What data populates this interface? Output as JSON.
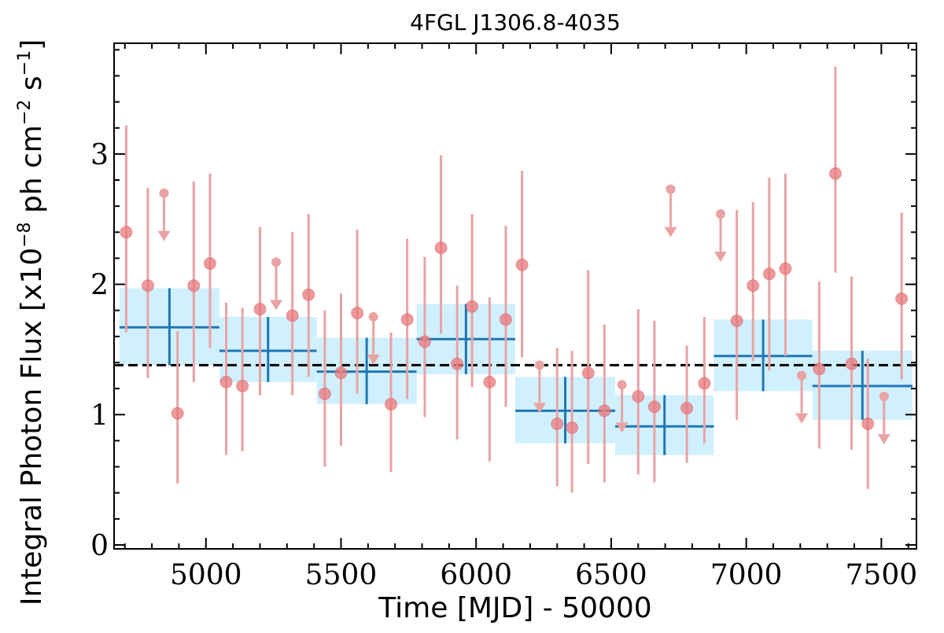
{
  "chart_data": {
    "type": "scatter",
    "title": "4FGL J1306.8-4035",
    "xlabel": "Time [MJD] - 50000",
    "ylabel": "Integral Photon Flux [x10",
    "ylabel_unit": "ph cm",
    "ylabel_unit_tail": "s",
    "ylabel_exp_flux": "−8",
    "ylabel_exp_area": "−2",
    "ylabel_exp_time": "−1",
    "xlim": [
      4660,
      7630
    ],
    "ylim": [
      -0.03,
      3.85
    ],
    "xticks": [
      5000,
      5500,
      6000,
      6500,
      7000,
      7500
    ],
    "xtick_labels": [
      "5000",
      "5500",
      "6000",
      "6500",
      "7000",
      "7500"
    ],
    "yticks": [
      0,
      1,
      2,
      3
    ],
    "ytick_labels": [
      "0",
      "1",
      "2",
      "3"
    ],
    "grid": false,
    "mean_flux": 1.38,
    "colors": {
      "points": "#e8787c",
      "errorbars": "#e9a3a3",
      "bins_fill": "#cceeff",
      "bins_line": "#1f77b4",
      "mean_line": "#000000"
    },
    "short_bins": [
      {
        "x": 4705,
        "y": 2.4,
        "lo": 1.63,
        "hi": 3.22,
        "ul": false
      },
      {
        "x": 4785,
        "y": 1.99,
        "lo": 1.28,
        "hi": 2.74,
        "ul": false
      },
      {
        "x": 4845,
        "y": 2.7,
        "ul": true
      },
      {
        "x": 4895,
        "y": 1.01,
        "lo": 0.47,
        "hi": 1.64,
        "ul": false
      },
      {
        "x": 4955,
        "y": 1.99,
        "lo": 1.25,
        "hi": 2.79,
        "ul": false
      },
      {
        "x": 5015,
        "y": 2.16,
        "lo": 1.51,
        "hi": 2.85,
        "ul": false
      },
      {
        "x": 5075,
        "y": 1.25,
        "lo": 0.69,
        "hi": 1.86,
        "ul": false
      },
      {
        "x": 5135,
        "y": 1.22,
        "lo": 0.72,
        "hi": 1.82,
        "ul": false
      },
      {
        "x": 5200,
        "y": 1.81,
        "lo": 1.15,
        "hi": 2.44,
        "ul": false
      },
      {
        "x": 5260,
        "y": 2.17,
        "ul": true
      },
      {
        "x": 5320,
        "y": 1.76,
        "lo": 1.15,
        "hi": 2.4,
        "ul": false
      },
      {
        "x": 5380,
        "y": 1.92,
        "lo": 1.29,
        "hi": 2.54,
        "ul": false
      },
      {
        "x": 5440,
        "y": 1.16,
        "lo": 0.6,
        "hi": 1.8,
        "ul": false
      },
      {
        "x": 5500,
        "y": 1.32,
        "lo": 0.76,
        "hi": 1.93,
        "ul": false
      },
      {
        "x": 5560,
        "y": 1.78,
        "lo": 1.16,
        "hi": 2.42,
        "ul": false
      },
      {
        "x": 5620,
        "y": 1.75,
        "ul": true
      },
      {
        "x": 5685,
        "y": 1.08,
        "lo": 0.56,
        "hi": 1.63,
        "ul": false
      },
      {
        "x": 5745,
        "y": 1.73,
        "lo": 1.12,
        "hi": 2.35,
        "ul": false
      },
      {
        "x": 5810,
        "y": 1.56,
        "lo": 0.98,
        "hi": 2.21,
        "ul": false
      },
      {
        "x": 5870,
        "y": 2.28,
        "lo": 1.62,
        "hi": 2.99,
        "ul": false
      },
      {
        "x": 5930,
        "y": 1.39,
        "lo": 0.81,
        "hi": 1.99,
        "ul": false
      },
      {
        "x": 5985,
        "y": 1.83,
        "lo": 1.21,
        "hi": 2.54,
        "ul": false
      },
      {
        "x": 6050,
        "y": 1.25,
        "lo": 0.64,
        "hi": 1.9,
        "ul": false
      },
      {
        "x": 6110,
        "y": 1.73,
        "lo": 1.06,
        "hi": 2.45,
        "ul": false
      },
      {
        "x": 6170,
        "y": 2.15,
        "lo": 1.44,
        "hi": 2.87,
        "ul": false
      },
      {
        "x": 6235,
        "y": 1.38,
        "ul": true
      },
      {
        "x": 6300,
        "y": 0.93,
        "lo": 0.45,
        "hi": 1.51,
        "ul": false
      },
      {
        "x": 6355,
        "y": 0.9,
        "lo": 0.4,
        "hi": 1.49,
        "ul": false
      },
      {
        "x": 6415,
        "y": 1.32,
        "lo": 0.62,
        "hi": 2.11,
        "ul": false
      },
      {
        "x": 6475,
        "y": 1.03,
        "lo": 0.48,
        "hi": 1.69,
        "ul": false
      },
      {
        "x": 6540,
        "y": 1.23,
        "ul": true
      },
      {
        "x": 6600,
        "y": 1.14,
        "lo": 0.54,
        "hi": 1.81,
        "ul": false
      },
      {
        "x": 6660,
        "y": 1.06,
        "lo": 0.48,
        "hi": 1.72,
        "ul": false
      },
      {
        "x": 6720,
        "y": 2.73,
        "ul": true
      },
      {
        "x": 6780,
        "y": 1.05,
        "lo": 0.63,
        "hi": 1.53,
        "ul": false
      },
      {
        "x": 6845,
        "y": 1.24,
        "lo": 0.78,
        "hi": 1.75,
        "ul": false
      },
      {
        "x": 6905,
        "y": 2.54,
        "ul": true
      },
      {
        "x": 6965,
        "y": 1.72,
        "lo": 0.96,
        "hi": 2.57,
        "ul": false
      },
      {
        "x": 7025,
        "y": 1.99,
        "lo": 1.41,
        "hi": 2.63,
        "ul": false
      },
      {
        "x": 7085,
        "y": 2.08,
        "lo": 1.34,
        "hi": 2.82,
        "ul": false
      },
      {
        "x": 7145,
        "y": 2.12,
        "lo": 1.45,
        "hi": 2.85,
        "ul": false
      },
      {
        "x": 7205,
        "y": 1.3,
        "ul": true
      },
      {
        "x": 7270,
        "y": 1.35,
        "lo": 0.74,
        "hi": 2.02,
        "ul": false
      },
      {
        "x": 7330,
        "y": 2.85,
        "lo": 2.09,
        "hi": 3.67,
        "ul": false
      },
      {
        "x": 7390,
        "y": 1.39,
        "lo": 0.73,
        "hi": 2.06,
        "ul": false
      },
      {
        "x": 7450,
        "y": 0.93,
        "lo": 0.43,
        "hi": 1.43,
        "ul": false
      },
      {
        "x": 7510,
        "y": 1.14,
        "ul": true
      },
      {
        "x": 7575,
        "y": 1.89,
        "lo": 1.27,
        "hi": 2.55,
        "ul": false
      }
    ],
    "long_bins": [
      {
        "x_start": 4680,
        "x_end": 5050,
        "y": 1.67,
        "lo": 1.38,
        "hi": 1.97
      },
      {
        "x_start": 5050,
        "x_end": 5410,
        "y": 1.49,
        "lo": 1.25,
        "hi": 1.75
      },
      {
        "x_start": 5410,
        "x_end": 5780,
        "y": 1.33,
        "lo": 1.08,
        "hi": 1.59
      },
      {
        "x_start": 5780,
        "x_end": 6145,
        "y": 1.58,
        "lo": 1.31,
        "hi": 1.85
      },
      {
        "x_start": 6145,
        "x_end": 6515,
        "y": 1.03,
        "lo": 0.78,
        "hi": 1.29
      },
      {
        "x_start": 6515,
        "x_end": 6880,
        "y": 0.91,
        "lo": 0.69,
        "hi": 1.15
      },
      {
        "x_start": 6880,
        "x_end": 7245,
        "y": 1.45,
        "lo": 1.18,
        "hi": 1.73
      },
      {
        "x_start": 7245,
        "x_end": 7615,
        "y": 1.22,
        "lo": 0.96,
        "hi": 1.49
      }
    ]
  }
}
